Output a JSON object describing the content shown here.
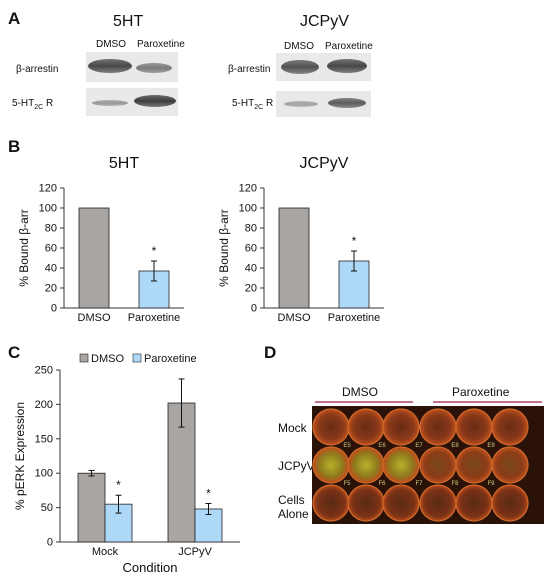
{
  "colors": {
    "dmso_bar": "#a8a5a2",
    "paroxetine_bar": "#aed8f7",
    "bar_stroke": "#222222",
    "divider_red": "#b04060"
  },
  "panel_a": {
    "label": "A",
    "left": {
      "title": "5HT",
      "lanes": [
        "DMSO",
        "Paroxetine"
      ],
      "rows": [
        "β-arrestin",
        "5-HT2C R"
      ]
    },
    "right": {
      "title": "JCPyV",
      "lanes": [
        "DMSO",
        "Paroxetine"
      ],
      "rows": [
        "β-arrestin",
        "5-HT2C R"
      ]
    }
  },
  "panel_d": {
    "label": "D",
    "groups": [
      "DMSO",
      "Paroxetine"
    ],
    "rows": [
      "Mock",
      "JCPyV",
      "Cells Alone"
    ],
    "well_labels": [
      "E5",
      "E6",
      "E7",
      "E8",
      "E9",
      "F5",
      "F6",
      "F7",
      "F8",
      "F9"
    ]
  },
  "chart_data": [
    {
      "panel_label": "B",
      "type": "bar",
      "title": "5HT",
      "categories": [
        "DMSO",
        "Paroxetine"
      ],
      "values": [
        100,
        37
      ],
      "errors": [
        0,
        10
      ],
      "significance": [
        "",
        "*"
      ],
      "ylabel": "% Bound β-arr",
      "xlabel": "",
      "ylim": [
        0,
        120
      ],
      "yticks": [
        0,
        20,
        40,
        60,
        80,
        100,
        120
      ],
      "grid": false
    },
    {
      "type": "bar",
      "title": "JCPyV",
      "categories": [
        "DMSO",
        "Paroxetine"
      ],
      "values": [
        100,
        47
      ],
      "errors": [
        0,
        10
      ],
      "significance": [
        "",
        "*"
      ],
      "ylabel": "% Bound β-arr",
      "xlabel": "",
      "ylim": [
        0,
        120
      ],
      "yticks": [
        0,
        20,
        40,
        60,
        80,
        100,
        120
      ],
      "grid": false
    },
    {
      "panel_label": "C",
      "type": "bar",
      "categories": [
        "Mock",
        "JCPyV"
      ],
      "series": [
        {
          "name": "DMSO",
          "values": [
            100,
            202
          ],
          "errors": [
            4,
            35
          ]
        },
        {
          "name": "Paroxetine",
          "values": [
            55,
            48
          ],
          "errors": [
            13,
            8
          ]
        }
      ],
      "significance": [
        "*",
        "*"
      ],
      "xlabel": "Condition",
      "ylabel": "% pERK Expression",
      "ylim": [
        0,
        250
      ],
      "yticks": [
        0,
        50,
        100,
        150,
        200,
        250
      ],
      "legend": "top",
      "grid": false
    }
  ]
}
